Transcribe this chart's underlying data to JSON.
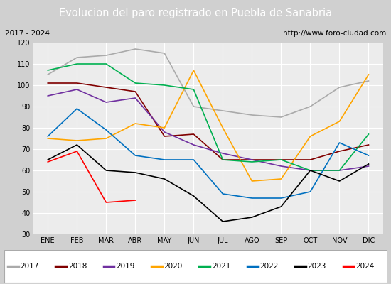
{
  "title": "Evolucion del paro registrado en Puebla de Sanabria",
  "subtitle_left": "2017 - 2024",
  "subtitle_right": "http://www.foro-ciudad.com",
  "title_bg": "#4472c4",
  "title_color": "white",
  "months": [
    "ENE",
    "FEB",
    "MAR",
    "ABR",
    "MAY",
    "JUN",
    "JUL",
    "AGO",
    "SEP",
    "OCT",
    "NOV",
    "DIC"
  ],
  "ylim": [
    30,
    120
  ],
  "yticks": [
    30,
    40,
    50,
    60,
    70,
    80,
    90,
    100,
    110,
    120
  ],
  "series": [
    {
      "year": "2017",
      "color": "#aaaaaa",
      "values": [
        105,
        113,
        114,
        117,
        115,
        90,
        88,
        86,
        85,
        90,
        99,
        102
      ]
    },
    {
      "year": "2018",
      "color": "#800000",
      "values": [
        101,
        101,
        99,
        97,
        76,
        77,
        65,
        65,
        65,
        65,
        69,
        72
      ]
    },
    {
      "year": "2019",
      "color": "#7030a0",
      "values": [
        95,
        98,
        92,
        94,
        78,
        72,
        68,
        65,
        62,
        60,
        60,
        62
      ]
    },
    {
      "year": "2020",
      "color": "#ffa500",
      "values": [
        75,
        74,
        75,
        82,
        80,
        107,
        80,
        55,
        56,
        76,
        83,
        105
      ]
    },
    {
      "year": "2021",
      "color": "#00b050",
      "values": [
        107,
        110,
        110,
        101,
        100,
        98,
        65,
        64,
        65,
        60,
        60,
        77
      ]
    },
    {
      "year": "2022",
      "color": "#0070c0",
      "values": [
        76,
        89,
        79,
        67,
        65,
        65,
        49,
        47,
        47,
        50,
        73,
        67
      ]
    },
    {
      "year": "2023",
      "color": "#000000",
      "values": [
        65,
        72,
        60,
        59,
        56,
        48,
        36,
        38,
        43,
        60,
        55,
        63
      ]
    },
    {
      "year": "2024",
      "color": "#ff0000",
      "values": [
        64,
        69,
        45,
        46,
        null,
        null,
        null,
        null,
        null,
        null,
        null,
        null
      ]
    }
  ]
}
